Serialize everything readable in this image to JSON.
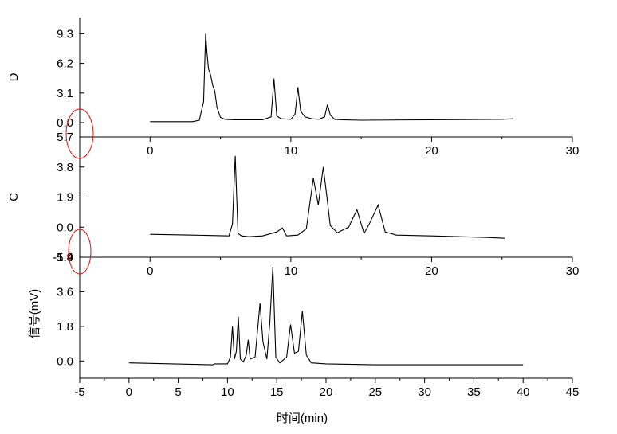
{
  "chart_data": [
    {
      "type": "line",
      "panel_label": "D",
      "ylabel": "",
      "y_ticks": [
        "0.0",
        "3.1",
        "6.2",
        "9.3"
      ],
      "y_tick_values": [
        0.0,
        3.1,
        6.2,
        9.3
      ],
      "ylim": [
        -1.5,
        11.0
      ],
      "x_ticks": [
        "0",
        "10",
        "20",
        "30"
      ],
      "x_tick_values": [
        0,
        10,
        20,
        30
      ],
      "xlim": [
        -5,
        30
      ],
      "series": [
        {
          "x": [
            0,
            3.0,
            3.5,
            3.8,
            3.95,
            4.05,
            4.15,
            4.3,
            4.45,
            4.6,
            4.75,
            5.0,
            5.3,
            6,
            8,
            8.6,
            8.8,
            9.0,
            9.3,
            10,
            10.3,
            10.5,
            10.7,
            11.0,
            11.5,
            12,
            12.4,
            12.6,
            12.8,
            13.1,
            13.6,
            15,
            20,
            25,
            25.8
          ],
          "y": [
            0.1,
            0.1,
            0.25,
            2.2,
            9.3,
            7.2,
            5.6,
            5.0,
            3.9,
            3.3,
            1.6,
            0.55,
            0.35,
            0.3,
            0.3,
            0.6,
            4.6,
            0.7,
            0.4,
            0.35,
            0.9,
            3.7,
            1.2,
            0.6,
            0.4,
            0.35,
            0.6,
            1.9,
            0.8,
            0.35,
            0.3,
            0.25,
            0.3,
            0.35,
            0.4
          ]
        }
      ]
    },
    {
      "type": "line",
      "panel_label": "C",
      "ylabel": "",
      "y_ticks": [
        "5.7",
        "3.8",
        "1.9",
        "0.0",
        "-1.9"
      ],
      "y_tick_values": [
        5.7,
        3.8,
        1.9,
        0.0,
        -1.9
      ],
      "ylim": [
        -1.9,
        5.7
      ],
      "x_ticks": [
        "0",
        "10",
        "20",
        "30"
      ],
      "x_tick_values": [
        0,
        10,
        20,
        30
      ],
      "xlim": [
        -5,
        30
      ],
      "series": [
        {
          "x": [
            0,
            3,
            5.6,
            5.85,
            6.05,
            6.25,
            6.5,
            7,
            8,
            9,
            9.4,
            9.7,
            10.5,
            11.1,
            11.6,
            11.95,
            12.3,
            12.55,
            12.8,
            13.3,
            14.1,
            14.7,
            15.2,
            15.6,
            16.2,
            16.7,
            17.5,
            20,
            24,
            25.2
          ],
          "y": [
            -0.45,
            -0.5,
            -0.55,
            0.2,
            4.5,
            -0.4,
            -0.55,
            -0.6,
            -0.55,
            -0.3,
            -0.05,
            -0.55,
            -0.5,
            -0.1,
            3.1,
            1.4,
            3.8,
            2.0,
            0.1,
            -0.35,
            0.0,
            1.1,
            -0.4,
            0.25,
            1.4,
            -0.3,
            -0.5,
            -0.55,
            -0.65,
            -0.7
          ]
        }
      ]
    },
    {
      "type": "line",
      "panel_label": "",
      "ylabel": "信号(mV)",
      "xlabel": "时间(min)",
      "y_ticks": [
        "5.4",
        "3.6",
        "1.8",
        "0.0"
      ],
      "y_tick_values": [
        5.4,
        3.6,
        1.8,
        0.0
      ],
      "ylim": [
        -0.9,
        5.4
      ],
      "x_ticks": [
        "-5",
        "0",
        "5",
        "10",
        "15",
        "20",
        "25",
        "30",
        "35",
        "40",
        "45"
      ],
      "x_tick_values": [
        -5,
        0,
        5,
        10,
        15,
        20,
        25,
        30,
        35,
        40,
        45
      ],
      "xlim": [
        -5,
        45
      ],
      "series": [
        {
          "x": [
            0,
            8.5,
            8.7,
            10,
            10.3,
            10.5,
            10.7,
            10.9,
            11.1,
            11.3,
            11.6,
            11.9,
            12.1,
            12.3,
            12.8,
            13.3,
            13.6,
            14.0,
            14.3,
            14.6,
            14.9,
            15.3,
            16.0,
            16.4,
            16.8,
            17.2,
            17.6,
            18.0,
            18.5,
            20,
            25,
            30,
            35,
            40
          ],
          "y": [
            -0.1,
            -0.2,
            -0.15,
            -0.15,
            0.2,
            1.8,
            0.1,
            0.5,
            2.3,
            0.1,
            -0.05,
            0.3,
            1.1,
            0.1,
            0.2,
            3.0,
            1.0,
            0.1,
            2.0,
            4.9,
            0.2,
            -0.1,
            0.2,
            1.9,
            0.4,
            0.5,
            2.6,
            0.3,
            -0.1,
            -0.15,
            -0.2,
            -0.2,
            -0.2,
            -0.2
          ]
        }
      ]
    }
  ]
}
